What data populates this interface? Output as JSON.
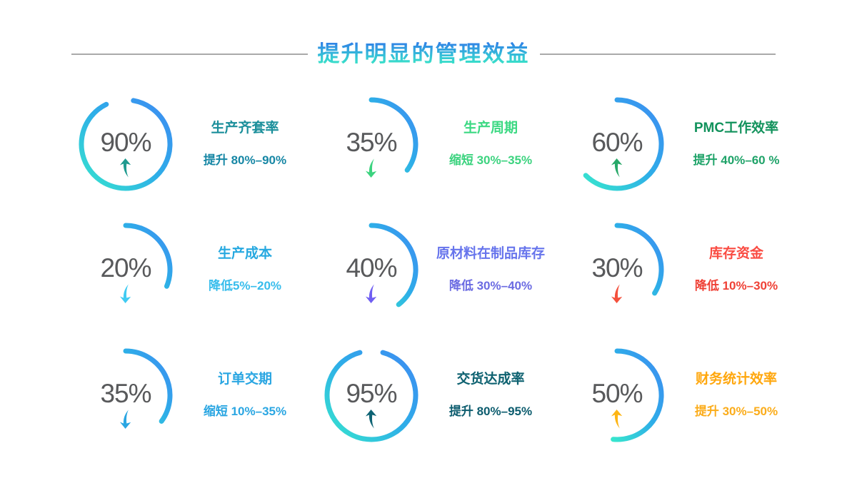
{
  "title": {
    "text": "提升明显的管理效益"
  },
  "colors": {
    "title_gradient_top": "#2f7be8",
    "title_gradient_bottom": "#3befc0",
    "divider_line": "#a9a9a9",
    "percent_text": "#58595b",
    "ring_gradient_start": "#3e8bf2",
    "ring_gradient_mid": "#2eaee8",
    "ring_gradient_end": "#37e5ce"
  },
  "chart_data": {
    "type": "pie",
    "subtype": "gauge-rings",
    "title": "提升明显的管理效益",
    "units": "%",
    "layout": "3x3 grid, arc starts at 12 o'clock and sweeps clockwise",
    "items": [
      {
        "percent_label": "90%",
        "value": 90,
        "metric": "生产齐套率",
        "change": "提升 80%–90%",
        "direction": "up",
        "arc_start_deg": 10,
        "arc_sweep_deg": 324,
        "label_color": "#1b8f9b",
        "change_color": "#1787a5",
        "arrow_color": "#1f9a8f"
      },
      {
        "percent_label": "35%",
        "value": 35,
        "metric": "生产周期",
        "change": "缩短 30%–35%",
        "direction": "down",
        "arc_start_deg": 0,
        "arc_sweep_deg": 126,
        "label_color": "#3cd983",
        "change_color": "#3cd37f",
        "arrow_color": "#3cd37f"
      },
      {
        "percent_label": "60%",
        "value": 60,
        "metric": "PMC工作效率",
        "change": "提升 40%–60 %",
        "direction": "up",
        "arc_start_deg": 0,
        "arc_sweep_deg": 225,
        "label_color": "#12925c",
        "change_color": "#1fa369",
        "arrow_color": "#27a868"
      },
      {
        "percent_label": "20%",
        "value": 20,
        "metric": "生产成本",
        "change": "降低5%–20%",
        "direction": "down",
        "arc_start_deg": 0,
        "arc_sweep_deg": 112,
        "label_color": "#27a9e0",
        "change_color": "#38bdec",
        "arrow_color": "#40cbf2"
      },
      {
        "percent_label": "40%",
        "value": 40,
        "metric": "原材料在制品库存",
        "change": "降低 30%–40%",
        "direction": "down",
        "arc_start_deg": 0,
        "arc_sweep_deg": 142,
        "label_color": "#6674ec",
        "change_color": "#6b6be2",
        "arrow_color": "#705ff2"
      },
      {
        "percent_label": "30%",
        "value": 30,
        "metric": "库存资金",
        "change": "降低 10%–30%",
        "direction": "down",
        "arc_start_deg": 0,
        "arc_sweep_deg": 122,
        "label_color": "#fa4b42",
        "change_color": "#ef4136",
        "arrow_color": "#f4503c"
      },
      {
        "percent_label": "35%",
        "value": 35,
        "metric": "订单交期",
        "change": "缩短 10%–35%",
        "direction": "down",
        "arc_start_deg": 0,
        "arc_sweep_deg": 126,
        "label_color": "#2aa6e2",
        "change_color": "#2aa6e2",
        "arrow_color": "#2aa6e2"
      },
      {
        "percent_label": "95%",
        "value": 95,
        "metric": "交货达成率",
        "change": "提升 80%–95%",
        "direction": "up",
        "arc_start_deg": 15,
        "arc_sweep_deg": 330,
        "label_color": "#0d6170",
        "change_color": "#0c5c6e",
        "arrow_color": "#0e6374"
      },
      {
        "percent_label": "50%",
        "value": 50,
        "metric": "财务统计效率",
        "change": "提升 30%–50%",
        "direction": "up",
        "arc_start_deg": 0,
        "arc_sweep_deg": 185,
        "label_color": "#ffa70d",
        "change_color": "#fbac1a",
        "arrow_color": "#fdb515"
      }
    ]
  }
}
